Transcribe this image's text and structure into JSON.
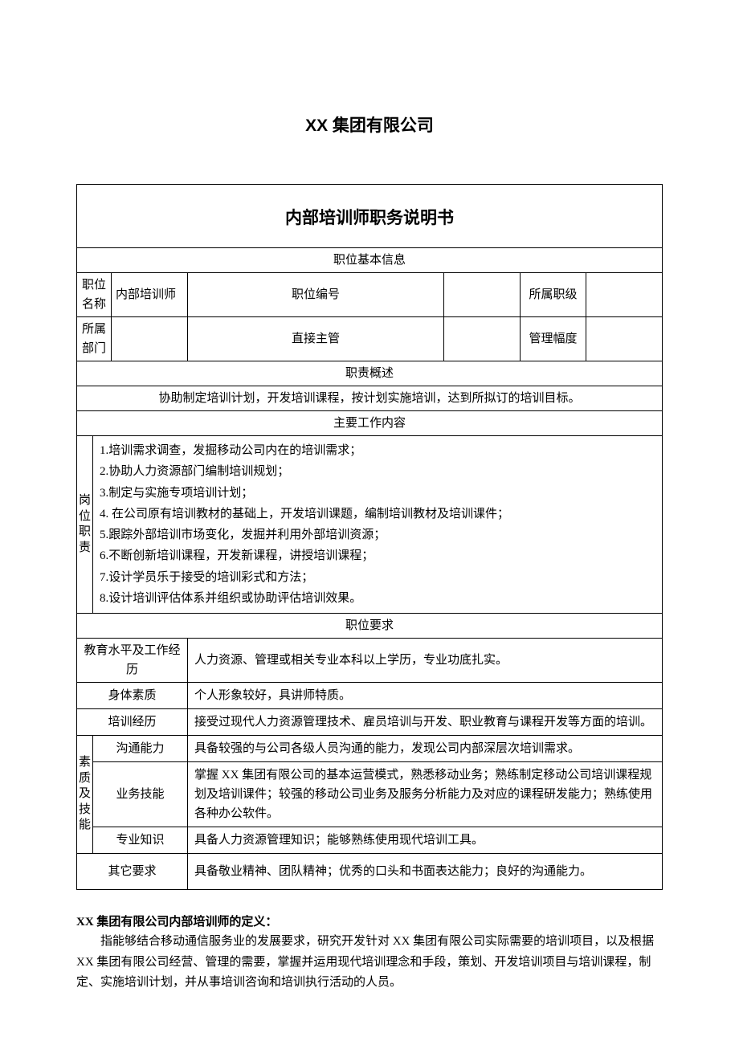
{
  "company_title": "XX 集团有限公司",
  "doc_title": "内部培训师职务说明书",
  "sections": {
    "basic_info_header": "职位基本信息",
    "basic_info": {
      "position_name_label": "职位名称",
      "position_name_value": "内部培训师",
      "position_code_label": "职位编号",
      "position_code_value": "",
      "rank_label": "所属职级",
      "rank_value": "",
      "dept_label": "所属部门",
      "dept_value": "",
      "supervisor_label": "直接主管",
      "supervisor_value": "",
      "span_label": "管理幅度",
      "span_value": ""
    },
    "duty_summary_header": "职责概述",
    "duty_summary": "协助制定培训计划，开发培训课程，按计划实施培训，达到所拟订的培训目标。",
    "main_work_header": "主要工作内容",
    "vert_label_duty": "岗位职责",
    "work_items": [
      "1.培训需求调查，发掘移动公司内在的培训需求；",
      "2.协助人力资源部门编制培训规划；",
      "3.制定与实施专项培训计划；",
      "4. 在公司原有培训教材的基础上，开发培训课题，编制培训教材及培训课件；",
      "5.跟踪外部培训市场变化，发掘并利用外部培训资源；",
      "6.不断创新培训课程，开发新课程，讲授培训课程；",
      "7.设计学员乐于接受的培训彩式和方法；",
      "8.设计培训评估体系并组织或协助评估培训效果。"
    ],
    "req_header": "职位要求",
    "edu_label": "教育水平及工作经历",
    "edu_value": "人力资源、管理或相关专业本科以上学历，专业功底扎实。",
    "body_label": "身体素质",
    "body_value": "个人形象较好，具讲师特质。",
    "training_label": "培训经历",
    "training_value": "接受过现代人力资源管理技术、雇员培训与开发、职业教育与课程开发等方面的培训。",
    "vert_label_skill": "素质及技能",
    "comm_label": "沟通能力",
    "comm_value": "具备较强的与公司各级人员沟通的能力，发现公司内部深层次培训需求。",
    "biz_label": "业务技能",
    "biz_value": "掌握 XX 集团有限公司的基本运营模式，熟悉移动业务；熟练制定移动公司培训课程规划及培训课件；较强的移动公司业务及服务分析能力及对应的课程研发能力；熟练使用各种办公软件。",
    "pro_label": "专业知识",
    "pro_value": "具备人力资源管理知识；能够熟练使用现代培训工具。",
    "other_label": "其它要求",
    "other_value": "具备敬业精神、团队精神；优秀的口头和书面表达能力；良好的沟通能力。"
  },
  "definition": {
    "title": "XX 集团有限公司内部培训师的定义：",
    "body": "指能够结合移动通信服务业的发展要求，研究开发针对 XX 集团有限公司实际需要的培训项目，以及根据 XX 集团有限公司经营、管理的需要，掌握并运用现代培训理念和手段，策划、开发培训项目与培训课程，制定、实施培训计划，并从事培训咨询和培训执行活动的人员。"
  }
}
